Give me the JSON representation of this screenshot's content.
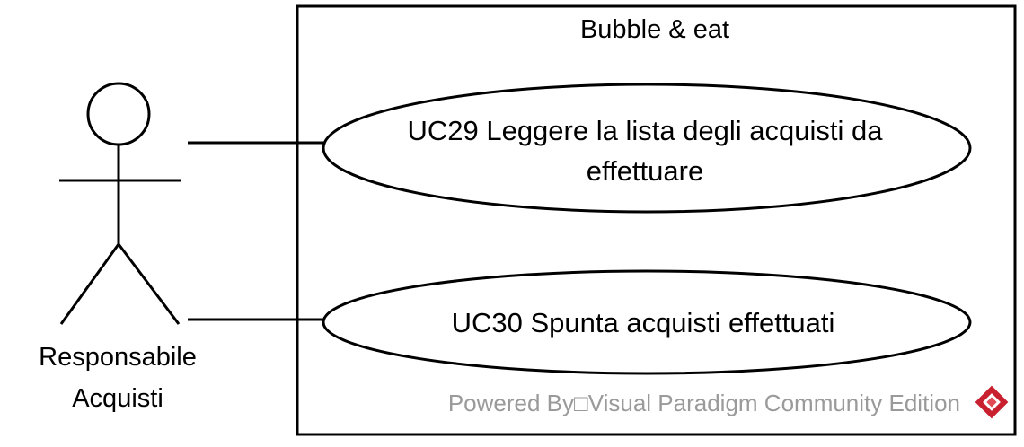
{
  "system": {
    "title": "Bubble & eat"
  },
  "actor": {
    "name_line1": "Responsabile",
    "name_line2": "Acquisti"
  },
  "use_cases": [
    {
      "line1": "UC29 Leggere la lista degli acquisti da",
      "line2": "effettuare"
    },
    {
      "line1": "UC30 Spunta acquisti effettuati"
    }
  ],
  "watermark": {
    "text": "Powered By□Visual Paradigm Community Edition",
    "logo_color": "#c8202f"
  },
  "colors": {
    "line": "#000000",
    "background": "#ffffff",
    "watermark_text": "#9a9a9a"
  }
}
